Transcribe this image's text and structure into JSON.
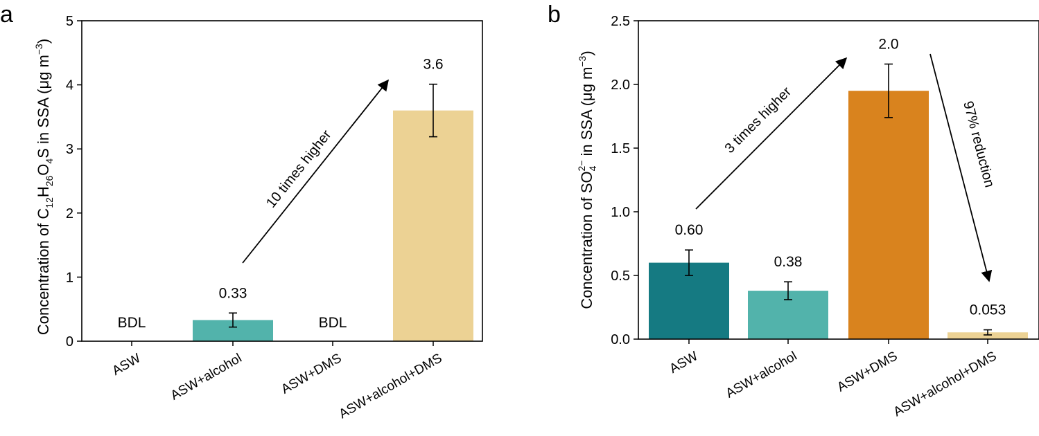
{
  "chart_data": [
    {
      "panel": "a",
      "type": "bar",
      "categories": [
        "ASW",
        "ASW+alcohol",
        "ASW+DMS",
        "ASW+alcohol+DMS"
      ],
      "values": [
        0,
        0.33,
        0,
        3.6
      ],
      "error": [
        0,
        0.11,
        0,
        0.41
      ],
      "value_labels": [
        "BDL",
        "0.33",
        "BDL",
        "3.6"
      ],
      "colors": [
        "#ffffff",
        "#52b3ab",
        "#ffffff",
        "#ecd294"
      ],
      "ylabel_parts": [
        "Concentration of C",
        "12",
        "H",
        "26",
        "O",
        "4",
        "S in SSA (μg m",
        "−3",
        ")"
      ],
      "ylim": [
        0,
        5
      ],
      "yticks": [
        0,
        1,
        2,
        3,
        4,
        5
      ],
      "ytick_labels": [
        "0",
        "1",
        "2",
        "3",
        "4",
        "5"
      ],
      "annotation": "10 times higher"
    },
    {
      "panel": "b",
      "type": "bar",
      "categories": [
        "ASW",
        "ASW+alcohol",
        "ASW+DMS",
        "ASW+alcohol+DMS"
      ],
      "values": [
        0.6,
        0.38,
        1.95,
        0.053
      ],
      "error": [
        0.1,
        0.07,
        0.21,
        0.02
      ],
      "value_labels": [
        "0.60",
        "0.38",
        "2.0",
        "0.053"
      ],
      "colors": [
        "#157a82",
        "#52b3ab",
        "#d9831e",
        "#ecd294"
      ],
      "ylabel_parts": [
        "Concentration of SO",
        "4",
        "2−",
        " in SSA (μg m",
        "−3",
        ")"
      ],
      "ylim": [
        0,
        2.5
      ],
      "yticks": [
        0,
        0.5,
        1.0,
        1.5,
        2.0,
        2.5
      ],
      "ytick_labels": [
        "0.0",
        "0.5",
        "1.0",
        "1.5",
        "2.0",
        "2.5"
      ],
      "annotations": [
        "3 times higher",
        "97% reduction"
      ]
    }
  ]
}
